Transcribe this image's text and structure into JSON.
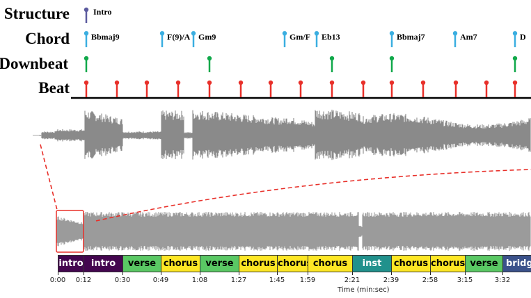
{
  "row_labels": {
    "structure": "Structure",
    "chord": "Chord",
    "downbeat": "Downbeat",
    "beat": "Beat"
  },
  "structure_markers": [
    {
      "time": "0:12",
      "label": "Intro"
    }
  ],
  "chord_markers": [
    "Bbmaj9",
    "F(9)/A",
    "Gm9",
    "Gm/F",
    "Eb13",
    "Bbmaj7",
    "Am7",
    "D"
  ],
  "beat_count": 15,
  "downbeat_count": 5,
  "colors": {
    "structure": "#5b5a9e",
    "chord": "#3aaee0",
    "downbeat": "#10a84a",
    "beat": "#e8302a",
    "zoom": "#e8302a",
    "waveform": "#8a8a8a",
    "intro": "#44064f",
    "verse": "#5ac864",
    "chorus": "#fde725",
    "inst": "#21918c",
    "bridge": "#3b528b"
  },
  "segments": [
    {
      "label": "intro",
      "type": "intro"
    },
    {
      "label": "intro",
      "type": "intro"
    },
    {
      "label": "verse",
      "type": "verse"
    },
    {
      "label": "chorus",
      "type": "chorus"
    },
    {
      "label": "verse",
      "type": "verse"
    },
    {
      "label": "chorus",
      "type": "chorus"
    },
    {
      "label": "chorus",
      "type": "chorus"
    },
    {
      "label": "chorus",
      "type": "chorus"
    },
    {
      "label": "inst",
      "type": "inst"
    },
    {
      "label": "chorus",
      "type": "chorus"
    },
    {
      "label": "chorus",
      "type": "chorus"
    },
    {
      "label": "verse",
      "type": "verse"
    },
    {
      "label": "bridge",
      "type": "bridge"
    }
  ],
  "time_ticks": [
    "0:00",
    "0:12",
    "0:30",
    "0:49",
    "1:08",
    "1:27",
    "1:45",
    "1:59",
    "2:21",
    "2:39",
    "2:58",
    "3:15",
    "3:32"
  ],
  "xlabel": "Time (min:sec)"
}
